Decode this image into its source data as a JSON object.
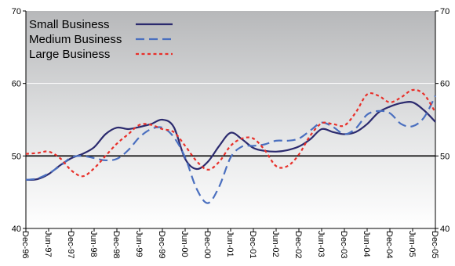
{
  "chart_data": {
    "type": "line",
    "title": "",
    "xlabel": "",
    "ylabel": "",
    "ylim": [
      40,
      70
    ],
    "y_ticks": [
      "40",
      "50",
      "60",
      "70"
    ],
    "reference_line": 50,
    "x_ticks": [
      "Dec-96",
      "Jun-97",
      "Dec-97",
      "Jun-98",
      "Dec-98",
      "Jun-99",
      "Dec-99",
      "Jun-00",
      "Dec-00",
      "Jun-01",
      "Dec-01",
      "Jun-02",
      "Dec-02",
      "Jun-03",
      "Dec-03",
      "Jun-04",
      "Dec-04",
      "Jun-05",
      "Dec-05"
    ],
    "legend_position": "top-left",
    "background": "gradient grey to white",
    "series": [
      {
        "name": "Small Business",
        "color": "#2b2a6e",
        "dash": "solid",
        "points": [
          [
            0,
            46.7
          ],
          [
            0.5,
            46.8
          ],
          [
            1,
            47.5
          ],
          [
            1.5,
            48.7
          ],
          [
            2,
            49.7
          ],
          [
            2.5,
            50.3
          ],
          [
            3,
            51.2
          ],
          [
            3.5,
            53.0
          ],
          [
            4,
            53.9
          ],
          [
            4.5,
            53.7
          ],
          [
            5,
            54.0
          ],
          [
            5.5,
            54.4
          ],
          [
            6,
            55.0
          ],
          [
            6.5,
            54.0
          ],
          [
            7,
            49.6
          ],
          [
            7.5,
            48.2
          ],
          [
            8,
            49.2
          ],
          [
            8.5,
            51.4
          ],
          [
            9,
            53.2
          ],
          [
            9.5,
            52.3
          ],
          [
            10,
            51.1
          ],
          [
            10.5,
            50.7
          ],
          [
            11,
            50.6
          ],
          [
            11.5,
            50.8
          ],
          [
            12,
            51.3
          ],
          [
            12.5,
            52.3
          ],
          [
            13,
            53.7
          ],
          [
            13.5,
            53.3
          ],
          [
            14,
            53.0
          ],
          [
            14.5,
            53.3
          ],
          [
            15,
            54.4
          ],
          [
            15.5,
            56.0
          ],
          [
            16,
            56.8
          ],
          [
            16.5,
            57.3
          ],
          [
            17,
            57.4
          ],
          [
            17.5,
            56.3
          ],
          [
            18,
            54.7
          ]
        ]
      },
      {
        "name": "Medium Business",
        "color": "#4a6fbf",
        "dash": "long-dash",
        "points": [
          [
            0,
            46.7
          ],
          [
            0.5,
            46.9
          ],
          [
            1,
            47.6
          ],
          [
            1.5,
            48.6
          ],
          [
            2,
            49.8
          ],
          [
            2.5,
            50.0
          ],
          [
            3,
            49.7
          ],
          [
            3.5,
            49.4
          ],
          [
            4,
            49.6
          ],
          [
            4.5,
            50.8
          ],
          [
            5,
            52.6
          ],
          [
            5.5,
            53.7
          ],
          [
            6,
            53.9
          ],
          [
            6.5,
            52.6
          ],
          [
            7,
            49.8
          ],
          [
            7.5,
            45.5
          ],
          [
            8,
            43.5
          ],
          [
            8.5,
            45.8
          ],
          [
            9,
            49.8
          ],
          [
            9.5,
            51.3
          ],
          [
            10,
            51.4
          ],
          [
            10.5,
            51.6
          ],
          [
            11,
            52.1
          ],
          [
            11.5,
            52.1
          ],
          [
            12,
            52.4
          ],
          [
            12.5,
            53.5
          ],
          [
            13,
            54.6
          ],
          [
            13.5,
            54.0
          ],
          [
            14,
            53.0
          ],
          [
            14.5,
            53.8
          ],
          [
            15,
            55.7
          ],
          [
            15.5,
            56.2
          ],
          [
            16,
            55.9
          ],
          [
            16.5,
            54.4
          ],
          [
            17,
            54.1
          ],
          [
            17.5,
            55.3
          ],
          [
            18,
            58.3
          ]
        ]
      },
      {
        "name": "Large Business",
        "color": "#e8302a",
        "dash": "short-dash",
        "points": [
          [
            0,
            50.3
          ],
          [
            0.5,
            50.4
          ],
          [
            1,
            50.6
          ],
          [
            1.5,
            49.7
          ],
          [
            2,
            48.0
          ],
          [
            2.5,
            47.2
          ],
          [
            3,
            48.3
          ],
          [
            3.5,
            50.0
          ],
          [
            4,
            51.7
          ],
          [
            4.5,
            53.0
          ],
          [
            5,
            54.3
          ],
          [
            5.5,
            54.3
          ],
          [
            6,
            53.7
          ],
          [
            6.5,
            53.3
          ],
          [
            7,
            51.4
          ],
          [
            7.5,
            49.3
          ],
          [
            8,
            48.1
          ],
          [
            8.5,
            49.2
          ],
          [
            9,
            51.4
          ],
          [
            9.5,
            52.4
          ],
          [
            10,
            52.4
          ],
          [
            10.5,
            50.8
          ],
          [
            11,
            48.6
          ],
          [
            11.5,
            48.6
          ],
          [
            12,
            50.2
          ],
          [
            12.5,
            52.8
          ],
          [
            13,
            54.5
          ],
          [
            13.5,
            54.4
          ],
          [
            14,
            54.2
          ],
          [
            14.5,
            56.0
          ],
          [
            15,
            58.5
          ],
          [
            15.5,
            58.3
          ],
          [
            16,
            57.4
          ],
          [
            16.5,
            58.1
          ],
          [
            17,
            59.1
          ],
          [
            17.5,
            58.5
          ],
          [
            18,
            56.0
          ]
        ]
      }
    ]
  }
}
